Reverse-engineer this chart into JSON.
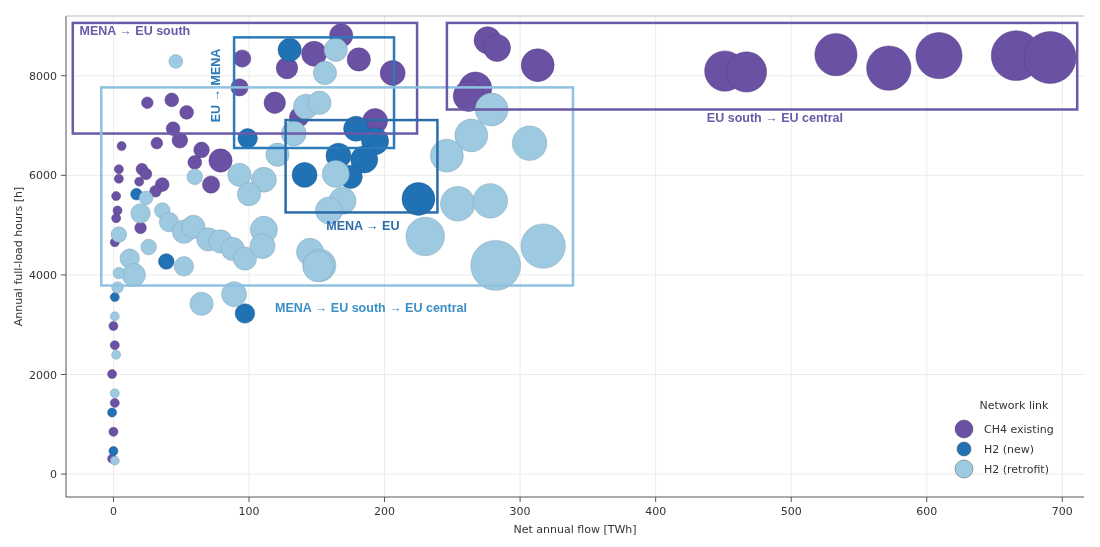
{
  "chart_data": {
    "type": "bubble",
    "xlabel": "Net annual flow [TWh]",
    "ylabel": "Annual full-load hours [h]",
    "legend_title": "Network link",
    "legend": "bottom right",
    "grid": true,
    "xlim": [
      -35,
      716
    ],
    "ylim": [
      -460,
      9200
    ],
    "xticks": [
      0,
      100,
      200,
      300,
      400,
      500,
      600,
      700
    ],
    "yticks": [
      0,
      2000,
      4000,
      6000,
      8000
    ],
    "series": [
      {
        "name": "CH4 existing",
        "color": "#6a51a3",
        "x": [
          276,
          283,
          313,
          267,
          262,
          451,
          467,
          533,
          572,
          609,
          666,
          691,
          168,
          181,
          148,
          128,
          206,
          95,
          93,
          119,
          137,
          193,
          54,
          43,
          25,
          44,
          32,
          49,
          65,
          79,
          60,
          72,
          21,
          24,
          19,
          36,
          31,
          20,
          6,
          4,
          4,
          2,
          3,
          2,
          1,
          -1,
          0,
          1,
          -1,
          1,
          0
        ],
        "values": [
          8713,
          8559,
          8211,
          7747,
          7593,
          8095,
          8076,
          8424,
          8153,
          8404,
          8404,
          8366,
          8810,
          8327,
          8443,
          8153,
          8056,
          8346,
          7767,
          7458,
          7168,
          7090,
          7264,
          7515,
          7458,
          6936,
          6646,
          6704,
          6511,
          6298,
          6260,
          5815,
          6124,
          6028,
          5873,
          5815,
          5680,
          4946,
          6588,
          6124,
          5931,
          5583,
          5294,
          5139,
          4656,
          309,
          850,
          1430,
          2009,
          2589,
          2975
        ],
        "sizes": [
          0.27,
          0.27,
          0.4,
          0.4,
          0.35,
          0.6,
          0.6,
          0.66,
          0.73,
          0.79,
          0.92,
          1,
          0.2,
          0.2,
          0.23,
          0.17,
          0.23,
          0.11,
          0.11,
          0.17,
          0.14,
          0.23,
          0.07,
          0.07,
          0.05,
          0.07,
          0.05,
          0.09,
          0.09,
          0.2,
          0.07,
          0.11,
          0.05,
          0.05,
          0.03,
          0.07,
          0.05,
          0.05,
          0.03,
          0.03,
          0.03,
          0.03,
          0.03,
          0.03,
          0.03,
          0.03,
          0.03,
          0.03,
          0.03,
          0.03,
          0.03
        ]
      },
      {
        "name": "H2 (new)",
        "color": "#2171b5",
        "x": [
          130,
          99,
          179,
          193,
          166,
          185,
          141,
          175,
          225,
          39,
          17,
          97,
          -1,
          1,
          0
        ],
        "values": [
          8520,
          6743,
          6936,
          6685,
          6395,
          6318,
          6009,
          5970,
          5526,
          4270,
          5622,
          3226,
          1236,
          3555,
          464
        ],
        "sizes": [
          0.2,
          0.14,
          0.23,
          0.27,
          0.23,
          0.27,
          0.23,
          0.2,
          0.4,
          0.09,
          0.05,
          0.14,
          0.03,
          0.03,
          0.03
        ]
      },
      {
        "name": "H2 (retrofit)",
        "color": "#9ecae1",
        "x": [
          46,
          164,
          156,
          142,
          152,
          133,
          121,
          93,
          111,
          100,
          60,
          24,
          20,
          4,
          36,
          41,
          52,
          59,
          70,
          79,
          88,
          97,
          111,
          110,
          145,
          152,
          164,
          169,
          159,
          52,
          12,
          15,
          26,
          65,
          89,
          264,
          246,
          279,
          307,
          254,
          278,
          230,
          317,
          282,
          151,
          1,
          1,
          2,
          1,
          3,
          4
        ],
        "values": [
          8288,
          8520,
          8056,
          7380,
          7458,
          6839,
          6414,
          6009,
          5912,
          5622,
          5970,
          5545,
          5236,
          4811,
          5294,
          5062,
          4869,
          4965,
          4714,
          4675,
          4521,
          4328,
          4907,
          4579,
          4463,
          4192,
          6028,
          5487,
          5294,
          4173,
          4328,
          3999,
          4560,
          3420,
          3613,
          6801,
          6395,
          7322,
          6646,
          5429,
          5487,
          4772,
          4579,
          4192,
          4173,
          270,
          1623,
          2396,
          3168,
          3748,
          4038
        ],
        "sizes": [
          0.07,
          0.2,
          0.2,
          0.23,
          0.2,
          0.23,
          0.2,
          0.2,
          0.23,
          0.2,
          0.09,
          0.07,
          0.14,
          0.09,
          0.09,
          0.14,
          0.2,
          0.2,
          0.2,
          0.2,
          0.2,
          0.2,
          0.27,
          0.23,
          0.27,
          0.4,
          0.27,
          0.27,
          0.27,
          0.14,
          0.14,
          0.2,
          0.09,
          0.2,
          0.23,
          0.4,
          0.4,
          0.4,
          0.44,
          0.44,
          0.44,
          0.55,
          0.73,
          0.92,
          0.35,
          0.03,
          0.03,
          0.03,
          0.03,
          0.05,
          0.05
        ]
      }
    ],
    "annotations": [
      "MENA → EU south",
      "EU → MENA",
      "MENA → EU",
      "MENA →  EU south → EU central",
      "EU south → EU central"
    ]
  }
}
